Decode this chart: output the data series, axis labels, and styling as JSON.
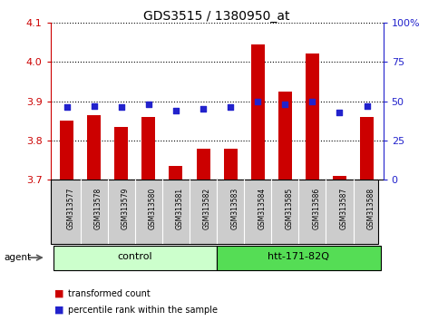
{
  "title": "GDS3515 / 1380950_at",
  "samples": [
    "GSM313577",
    "GSM313578",
    "GSM313579",
    "GSM313580",
    "GSM313581",
    "GSM313582",
    "GSM313583",
    "GSM313584",
    "GSM313585",
    "GSM313586",
    "GSM313587",
    "GSM313588"
  ],
  "transformed_count": [
    3.85,
    3.865,
    3.835,
    3.86,
    3.735,
    3.78,
    3.78,
    4.045,
    3.925,
    4.02,
    3.71,
    3.86
  ],
  "percentile_rank": [
    46,
    47,
    46,
    48,
    44,
    45,
    46,
    50,
    48,
    50,
    43,
    47
  ],
  "ylim_left": [
    3.7,
    4.1
  ],
  "ylim_right": [
    0,
    100
  ],
  "yticks_left": [
    3.7,
    3.8,
    3.9,
    4.0,
    4.1
  ],
  "yticks_right": [
    0,
    25,
    50,
    75,
    100
  ],
  "ytick_labels_right": [
    "0",
    "25",
    "50",
    "75",
    "100%"
  ],
  "bar_color": "#cc0000",
  "dot_color": "#2222cc",
  "bar_bottom": 3.7,
  "group_labels": [
    "control",
    "htt-171-82Q"
  ],
  "group_ranges": [
    [
      0,
      5
    ],
    [
      6,
      11
    ]
  ],
  "group_colors_light": [
    "#ccffcc",
    "#55dd55"
  ],
  "agent_label": "agent",
  "legend_items": [
    "transformed count",
    "percentile rank within the sample"
  ],
  "legend_colors": [
    "#cc0000",
    "#2222cc"
  ],
  "tick_label_area_color": "#cccccc",
  "dotted_line_color": "#000000",
  "left_axis_color": "#cc0000",
  "right_axis_color": "#2222cc",
  "title_fontsize": 10,
  "bar_width": 0.5
}
